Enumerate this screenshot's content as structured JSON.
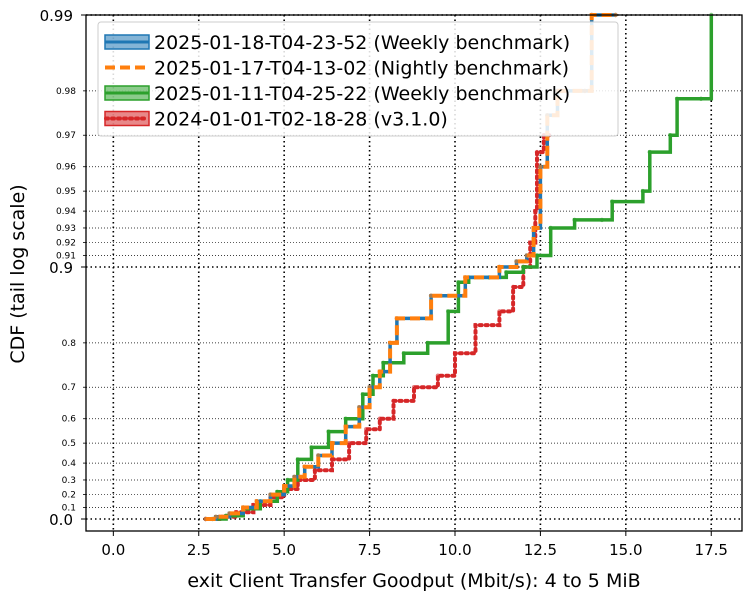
{
  "chart_data": {
    "type": "line",
    "title": "",
    "xlabel": "exit Client Transfer Goodput (Mbit/s): 4 to 5 MiB",
    "ylabel": "CDF (tail log scale)",
    "xlim": [
      -0.8,
      18.4
    ],
    "x_ticks": [
      0.0,
      2.5,
      5.0,
      7.5,
      10.0,
      12.5,
      15.0,
      17.5
    ],
    "x_tick_labels": [
      "0.0",
      "2.5",
      "5.0",
      "7.5",
      "10.0",
      "12.5",
      "15.0",
      "17.5"
    ],
    "y_scale": "tail-log (-log10(1-p))",
    "y_major_ticks": [
      0.0,
      0.9,
      0.99
    ],
    "y_major_labels": [
      "0.0",
      "0.9",
      "0.99"
    ],
    "y_minor_ticks": [
      0.1,
      0.2,
      0.3,
      0.4,
      0.5,
      0.6,
      0.7,
      0.8,
      0.91,
      0.92,
      0.93,
      0.94,
      0.95,
      0.96,
      0.97,
      0.98
    ],
    "y_minor_labels": [
      "0.1",
      "0.2",
      "0.3",
      "0.4",
      "0.5",
      "0.6",
      "0.7",
      "0.8",
      "0.91",
      "0.92",
      "0.93",
      "0.94",
      "0.95",
      "0.96",
      "0.97",
      "0.98"
    ],
    "grid": true,
    "legend_position": "top-left",
    "series": [
      {
        "name": "2025-01-18-T04-23-52 (Weekly benchmark)",
        "color": "#1f77b4",
        "style": "solid",
        "points": [
          [
            2.7,
            0.0
          ],
          [
            3.0,
            0.02
          ],
          [
            3.4,
            0.05
          ],
          [
            3.8,
            0.1
          ],
          [
            4.2,
            0.15
          ],
          [
            4.6,
            0.2
          ],
          [
            5.0,
            0.26
          ],
          [
            5.3,
            0.32
          ],
          [
            5.6,
            0.38
          ],
          [
            6.0,
            0.44
          ],
          [
            6.4,
            0.5
          ],
          [
            6.8,
            0.57
          ],
          [
            7.2,
            0.64
          ],
          [
            7.5,
            0.7
          ],
          [
            7.8,
            0.74
          ],
          [
            8.1,
            0.8
          ],
          [
            8.3,
            0.84
          ],
          [
            9.3,
            0.87
          ],
          [
            10.3,
            0.89
          ],
          [
            11.3,
            0.9
          ],
          [
            11.8,
            0.905
          ],
          [
            12.1,
            0.91
          ],
          [
            12.3,
            0.93
          ],
          [
            12.5,
            0.96
          ],
          [
            12.7,
            0.975
          ],
          [
            13.0,
            0.98
          ],
          [
            13.8,
            0.98
          ],
          [
            14.0,
            0.99
          ],
          [
            14.7,
            0.99
          ]
        ]
      },
      {
        "name": "2025-01-17-T04-13-02 (Nightly benchmark)",
        "color": "#ff7f0e",
        "style": "dashed",
        "points": [
          [
            2.7,
            0.0
          ],
          [
            3.0,
            0.02
          ],
          [
            3.4,
            0.05
          ],
          [
            3.8,
            0.1
          ],
          [
            4.2,
            0.15
          ],
          [
            4.6,
            0.2
          ],
          [
            5.0,
            0.26
          ],
          [
            5.3,
            0.32
          ],
          [
            5.6,
            0.38
          ],
          [
            6.0,
            0.44
          ],
          [
            6.4,
            0.5
          ],
          [
            6.8,
            0.57
          ],
          [
            7.2,
            0.64
          ],
          [
            7.5,
            0.7
          ],
          [
            7.8,
            0.74
          ],
          [
            8.1,
            0.8
          ],
          [
            8.3,
            0.84
          ],
          [
            9.3,
            0.87
          ],
          [
            10.3,
            0.89
          ],
          [
            11.3,
            0.9
          ],
          [
            11.8,
            0.905
          ],
          [
            12.1,
            0.91
          ],
          [
            12.3,
            0.93
          ],
          [
            12.5,
            0.96
          ],
          [
            12.7,
            0.975
          ],
          [
            13.0,
            0.98
          ],
          [
            13.8,
            0.98
          ],
          [
            14.0,
            0.99
          ],
          [
            14.7,
            0.99
          ]
        ]
      },
      {
        "name": "2025-01-11-T04-25-22 (Weekly benchmark)",
        "color": "#2ca02c",
        "style": "solid",
        "points": [
          [
            2.9,
            0.0
          ],
          [
            3.3,
            0.03
          ],
          [
            3.8,
            0.09
          ],
          [
            4.3,
            0.15
          ],
          [
            4.8,
            0.22
          ],
          [
            5.1,
            0.3
          ],
          [
            5.4,
            0.42
          ],
          [
            5.8,
            0.48
          ],
          [
            6.3,
            0.55
          ],
          [
            6.8,
            0.6
          ],
          [
            7.3,
            0.68
          ],
          [
            7.6,
            0.73
          ],
          [
            7.9,
            0.76
          ],
          [
            8.5,
            0.78
          ],
          [
            9.2,
            0.8
          ],
          [
            9.8,
            0.85
          ],
          [
            10.1,
            0.885
          ],
          [
            10.4,
            0.89
          ],
          [
            11.0,
            0.89
          ],
          [
            11.5,
            0.895
          ],
          [
            12.0,
            0.9
          ],
          [
            12.4,
            0.91
          ],
          [
            12.8,
            0.93
          ],
          [
            13.5,
            0.935
          ],
          [
            14.3,
            0.935
          ],
          [
            14.6,
            0.945
          ],
          [
            15.5,
            0.95
          ],
          [
            15.7,
            0.965
          ],
          [
            16.3,
            0.97
          ],
          [
            16.5,
            0.9785
          ],
          [
            17.2,
            0.9785
          ],
          [
            17.5,
            0.99
          ]
        ]
      },
      {
        "name": "2024-01-01-T02-18-28 (v3.1.0)",
        "color": "#d62728",
        "style": "dotted",
        "points": [
          [
            2.7,
            0.0
          ],
          [
            3.1,
            0.02
          ],
          [
            3.6,
            0.06
          ],
          [
            4.1,
            0.12
          ],
          [
            4.6,
            0.18
          ],
          [
            5.0,
            0.24
          ],
          [
            5.4,
            0.3
          ],
          [
            5.9,
            0.36
          ],
          [
            6.4,
            0.42
          ],
          [
            6.9,
            0.5
          ],
          [
            7.4,
            0.56
          ],
          [
            7.8,
            0.6
          ],
          [
            8.2,
            0.66
          ],
          [
            8.8,
            0.7
          ],
          [
            9.5,
            0.73
          ],
          [
            10.0,
            0.78
          ],
          [
            10.6,
            0.83
          ],
          [
            11.3,
            0.85
          ],
          [
            11.7,
            0.88
          ],
          [
            12.0,
            0.9
          ],
          [
            12.2,
            0.92
          ],
          [
            12.35,
            0.94
          ],
          [
            12.4,
            0.965
          ],
          [
            12.6,
            0.97
          ],
          [
            12.75,
            0.97
          ]
        ]
      }
    ]
  }
}
